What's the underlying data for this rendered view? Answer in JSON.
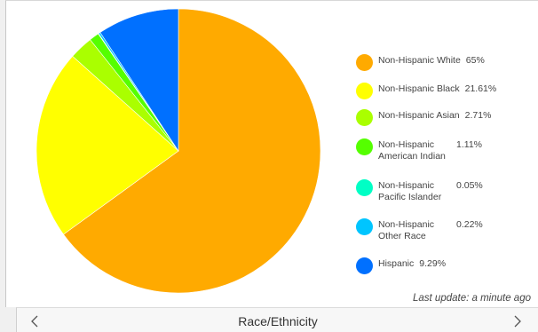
{
  "chart_data": {
    "type": "pie",
    "title": "Race/Ethnicity",
    "legend_position": "right",
    "slices": [
      {
        "label": "Non-Hispanic White",
        "value_label": "65%",
        "value": 65.0,
        "color": "#ffaa00"
      },
      {
        "label": "Non-Hispanic Black",
        "value_label": "21.61%",
        "value": 21.61,
        "color": "#ffff00"
      },
      {
        "label": "Non-Hispanic Asian",
        "value_label": "2.71%",
        "value": 2.71,
        "color": "#aaff00"
      },
      {
        "label": "Non-Hispanic American Indian",
        "value_label": "1.11%",
        "value": 1.11,
        "color": "#55ff00"
      },
      {
        "label": "Non-Hispanic Pacific Islander",
        "value_label": "0.05%",
        "value": 0.05,
        "color": "#00ffc5"
      },
      {
        "label": "Non-Hispanic Other Race",
        "value_label": "0.22%",
        "value": 0.22,
        "color": "#00c5ff"
      },
      {
        "label": "Hispanic",
        "value_label": "9.29%",
        "value": 9.29,
        "color": "#0070ff"
      }
    ]
  },
  "last_update": "Last update: a minute ago",
  "footer": {
    "title": "Race/Ethnicity",
    "prev_icon": "chevron-left-icon",
    "next_icon": "chevron-right-icon"
  }
}
